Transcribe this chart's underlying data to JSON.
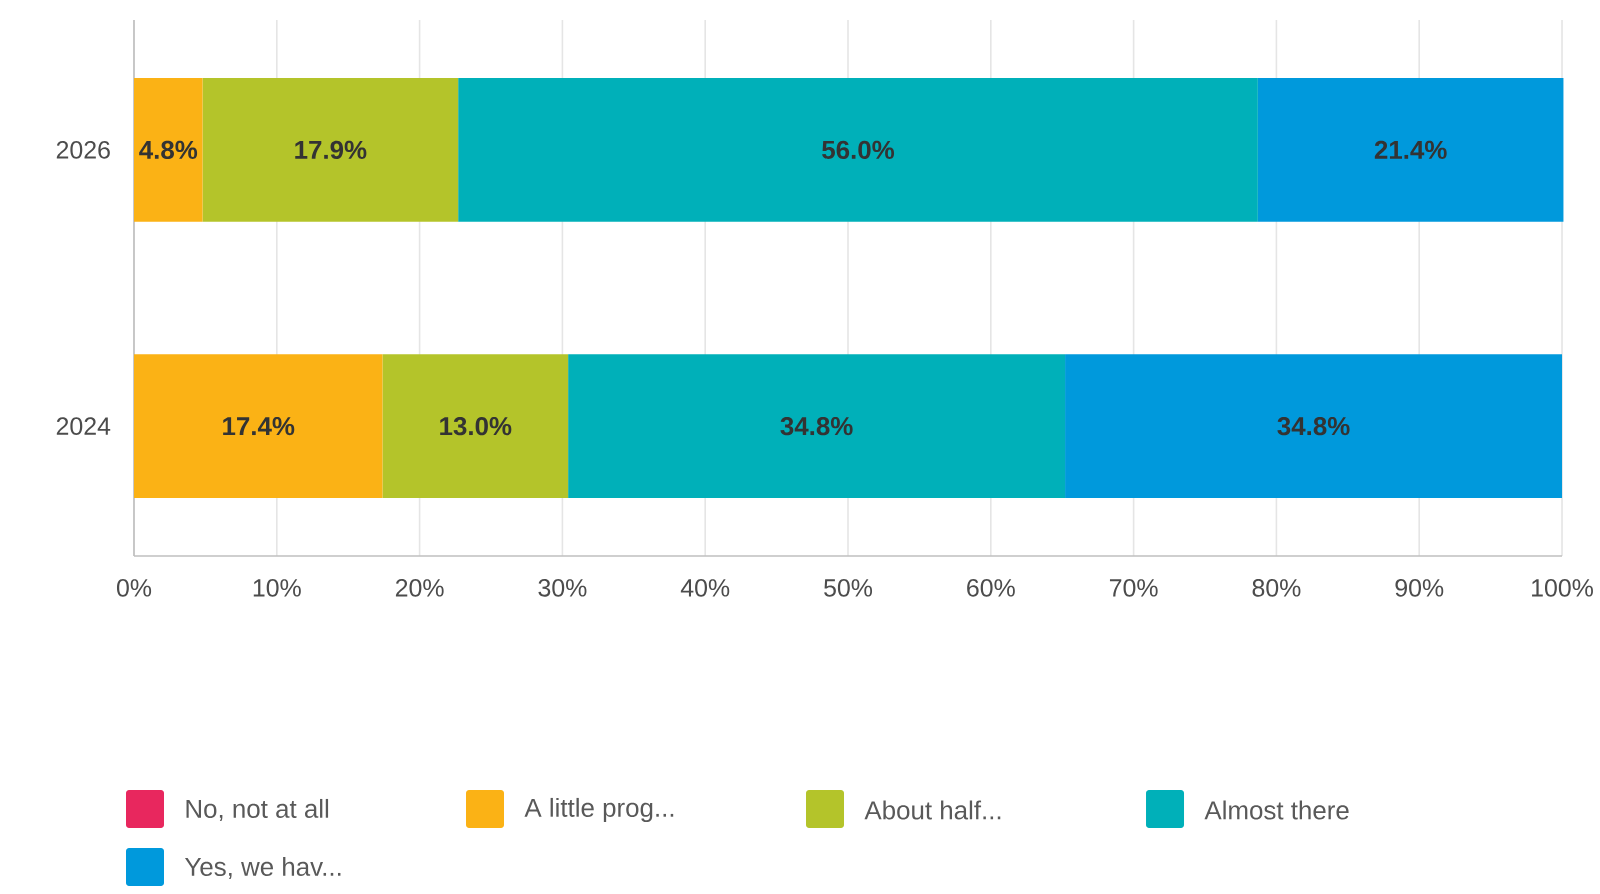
{
  "chart_data": {
    "type": "bar",
    "orientation": "horizontal",
    "stacked": true,
    "categories": [
      "2026",
      "2024"
    ],
    "series": [
      {
        "name": "No, not at all",
        "color": "#e8275e",
        "values": [
          0,
          0
        ],
        "value_labels": [
          null,
          null
        ]
      },
      {
        "name": "A little prog...",
        "color": "#fbb215",
        "values": [
          4.8,
          17.4
        ],
        "value_labels": [
          "4.8%",
          "17.4%"
        ]
      },
      {
        "name": "About half...",
        "color": "#b4c42a",
        "values": [
          17.9,
          13.0
        ],
        "value_labels": [
          "17.9%",
          "13.0%"
        ]
      },
      {
        "name": "Almost there",
        "color": "#00b0b9",
        "values": [
          56.0,
          34.8
        ],
        "value_labels": [
          "56.0%",
          "34.8%"
        ]
      },
      {
        "name": "Yes, we hav...",
        "color": "#0099dc",
        "values": [
          21.4,
          34.8
        ],
        "value_labels": [
          "21.4%",
          "34.8%"
        ]
      }
    ],
    "xlim": [
      0,
      100
    ],
    "xticks": [
      {
        "value": 0,
        "label": "0%"
      },
      {
        "value": 10,
        "label": "10%"
      },
      {
        "value": 20,
        "label": "20%"
      },
      {
        "value": 30,
        "label": "30%"
      },
      {
        "value": 40,
        "label": "40%"
      },
      {
        "value": 50,
        "label": "50%"
      },
      {
        "value": 60,
        "label": "60%"
      },
      {
        "value": 70,
        "label": "70%"
      },
      {
        "value": 80,
        "label": "80%"
      },
      {
        "value": 90,
        "label": "90%"
      },
      {
        "value": 100,
        "label": "100%"
      }
    ],
    "grid": "x",
    "legend": "bottom"
  }
}
